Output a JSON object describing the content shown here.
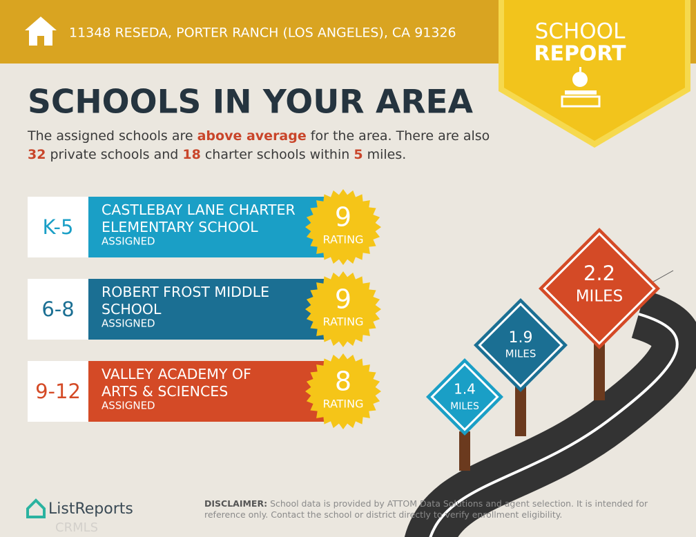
{
  "header": {
    "address": "11348 RESEDA, PORTER RANCH (LOS ANGELES), CA 91326",
    "badge_line1": "SCHOOL",
    "badge_line2": "REPORT"
  },
  "title": "SCHOOLS IN YOUR AREA",
  "intro": [
    {
      "text": "The assigned schools are ",
      "emphasis": false
    },
    {
      "text": "above average",
      "emphasis": true
    },
    {
      "text": " for the area. There are also ",
      "emphasis": false
    },
    {
      "text": "32",
      "emphasis": true
    },
    {
      "text": " private schools and ",
      "emphasis": false
    },
    {
      "text": "18",
      "emphasis": true
    },
    {
      "text": " charter schools within ",
      "emphasis": false
    },
    {
      "text": "5",
      "emphasis": true
    },
    {
      "text": " miles.",
      "emphasis": false
    }
  ],
  "schools": [
    {
      "grades": "K-5",
      "name_lines": [
        "CASTLEBAY LANE CHARTER",
        "ELEMENTARY SCHOOL"
      ],
      "status": "ASSIGNED",
      "rating": 9,
      "rating_label": "RATING",
      "color": "#1a9fc6"
    },
    {
      "grades": "6-8",
      "name_lines": [
        "ROBERT FROST MIDDLE",
        "SCHOOL"
      ],
      "status": "ASSIGNED",
      "rating": 9,
      "rating_label": "RATING",
      "color": "#1b6f93"
    },
    {
      "grades": "9-12",
      "name_lines": [
        "VALLEY ACADEMY OF",
        "ARTS & SCIENCES"
      ],
      "status": "ASSIGNED",
      "rating": 8,
      "rating_label": "RATING",
      "color": "#d44a26"
    }
  ],
  "signs": [
    {
      "distance": 2.2,
      "unit": "MILES",
      "color": "#d44a26"
    },
    {
      "distance": 1.9,
      "unit": "MILES",
      "color": "#1b6f93"
    },
    {
      "distance": 1.4,
      "unit": "MILES",
      "color": "#1a9fc6"
    }
  ],
  "footer": {
    "logo": "ListReports",
    "watermark": "CRMLS",
    "disclaimer_label": "DISCLAIMER:",
    "disclaimer": " School data is provided by ATTOM Data Solutions and agent selection. It is intended for reference only. Contact the school or district directly to verify enrollment eligibility."
  }
}
